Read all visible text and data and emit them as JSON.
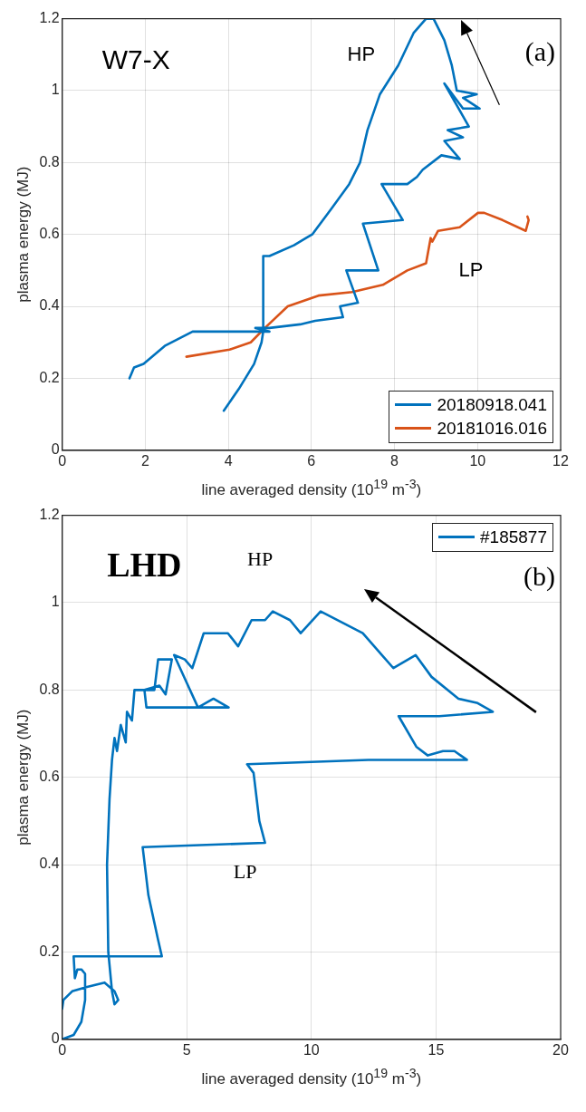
{
  "chart_data": [
    {
      "type": "line",
      "xlabel": "line averaged density (10$^{19}$ m$^{-3}$)",
      "ylabel": "plasma energy (MJ)",
      "xlim": [
        0,
        12
      ],
      "ylim": [
        0,
        1.2
      ],
      "xticks": [
        0,
        2,
        4,
        6,
        8,
        10,
        12
      ],
      "yticks": [
        0,
        0.2,
        0.4,
        0.6,
        0.8,
        1,
        1.2
      ],
      "grid": true,
      "legend": "bottom right",
      "annotations": [
        "W7-X",
        "(a)",
        "HP",
        "LP"
      ],
      "series": [
        {
          "name": "20180918.041",
          "color": "#0072bd",
          "x": [
            3.89,
            4.25,
            4.62,
            4.8,
            4.84,
            4.84,
            4.99,
            5.58,
            5.87,
            6.02,
            6.47,
            6.91,
            7.17,
            7.35,
            7.65,
            8.09,
            8.46,
            8.76,
            8.94,
            9.2,
            9.38,
            9.5,
            9.98,
            9.65,
            10.05,
            9.65,
            9.2,
            9.79,
            9.28,
            9.65,
            9.2,
            9.57,
            9.13,
            8.68,
            8.54,
            8.31,
            7.69,
            8.2,
            7.24,
            7.61,
            6.84,
            7.12,
            6.69,
            6.76,
            6.09,
            5.73,
            4.99,
            4.65,
            4.99,
            3.14,
            2.47,
            1.96,
            1.73,
            1.62
          ],
          "values": [
            0.11,
            0.17,
            0.24,
            0.3,
            0.33,
            0.54,
            0.54,
            0.57,
            0.59,
            0.6,
            0.67,
            0.74,
            0.8,
            0.89,
            0.99,
            1.07,
            1.16,
            1.2,
            1.2,
            1.14,
            1.07,
            1,
            0.99,
            0.98,
            0.95,
            0.95,
            1.02,
            0.9,
            0.89,
            0.87,
            0.86,
            0.81,
            0.82,
            0.78,
            0.76,
            0.74,
            0.74,
            0.64,
            0.63,
            0.5,
            0.5,
            0.41,
            0.4,
            0.37,
            0.36,
            0.35,
            0.34,
            0.34,
            0.33,
            0.33,
            0.29,
            0.24,
            0.23,
            0.2
          ]
        },
        {
          "name": "20181016.016",
          "color": "#d95319",
          "x": [
            2.99,
            4.03,
            4.54,
            4.88,
            5.43,
            6.17,
            6.98,
            7.72,
            8.31,
            8.76,
            8.87,
            8.91,
            9.05,
            9.57,
            10.01,
            10.16,
            10.6,
            11.16,
            11.23,
            11.2
          ],
          "values": [
            0.26,
            0.28,
            0.3,
            0.34,
            0.4,
            0.43,
            0.44,
            0.46,
            0.5,
            0.52,
            0.59,
            0.58,
            0.61,
            0.62,
            0.66,
            0.66,
            0.64,
            0.61,
            0.64,
            0.65
          ]
        }
      ]
    },
    {
      "type": "line",
      "xlabel": "line averaged density (10$^{19}$ m$^{-3}$)",
      "ylabel": "plasma energy (MJ)",
      "xlim": [
        0,
        20
      ],
      "ylim": [
        0,
        1.2
      ],
      "xticks": [
        0,
        5,
        10,
        15,
        20
      ],
      "yticks": [
        0,
        0.2,
        0.4,
        0.6,
        0.8,
        1,
        1.2
      ],
      "grid": true,
      "legend": "top right",
      "annotations": [
        "LHD",
        "(b)",
        "HP",
        "LP"
      ],
      "series": [
        {
          "name": "#185877",
          "color": "#0072bd",
          "x": [
            0,
            0.46,
            0.77,
            0.92,
            0.92,
            0.77,
            0.61,
            0.51,
            0.46,
            0.54,
            4.0,
            3.84,
            3.46,
            3.23,
            8.14,
            7.91,
            7.68,
            7.42,
            12.29,
            15.28,
            16.24,
            15.74,
            15.28,
            14.67,
            14.21,
            13.5,
            15.13,
            17.28,
            16.67,
            15.9,
            14.82,
            14.18,
            13.29,
            12.83,
            12.06,
            10.37,
            9.57,
            9.14,
            8.45,
            8.14,
            7.6,
            7.06,
            6.65,
            5.68,
            5.22,
            4.92,
            4.49,
            5.45,
            6.07,
            6.68,
            3.38,
            3.3,
            3.9,
            4.15,
            4.4,
            3.85,
            3.7,
            2.9,
            2.8,
            2.6,
            2.55,
            2.35,
            2.2,
            2.1,
            2.0,
            1.9,
            1.8,
            1.85,
            2.0,
            2.1,
            2.25,
            2.1,
            1.7,
            1.0,
            0.4,
            0.05,
            0
          ],
          "values": [
            0,
            0.01,
            0.04,
            0.09,
            0.15,
            0.16,
            0.16,
            0.14,
            0.19,
            0.19,
            0.19,
            0.23,
            0.33,
            0.44,
            0.45,
            0.5,
            0.61,
            0.63,
            0.64,
            0.64,
            0.64,
            0.66,
            0.66,
            0.65,
            0.67,
            0.74,
            0.74,
            0.75,
            0.77,
            0.78,
            0.83,
            0.88,
            0.85,
            0.88,
            0.93,
            0.98,
            0.93,
            0.96,
            0.98,
            0.96,
            0.96,
            0.9,
            0.93,
            0.93,
            0.85,
            0.87,
            0.88,
            0.76,
            0.78,
            0.76,
            0.76,
            0.8,
            0.81,
            0.79,
            0.87,
            0.87,
            0.8,
            0.8,
            0.73,
            0.75,
            0.68,
            0.72,
            0.66,
            0.69,
            0.64,
            0.55,
            0.4,
            0.2,
            0.11,
            0.08,
            0.09,
            0.11,
            0.13,
            0.12,
            0.11,
            0.09,
            0.07
          ]
        }
      ]
    }
  ]
}
